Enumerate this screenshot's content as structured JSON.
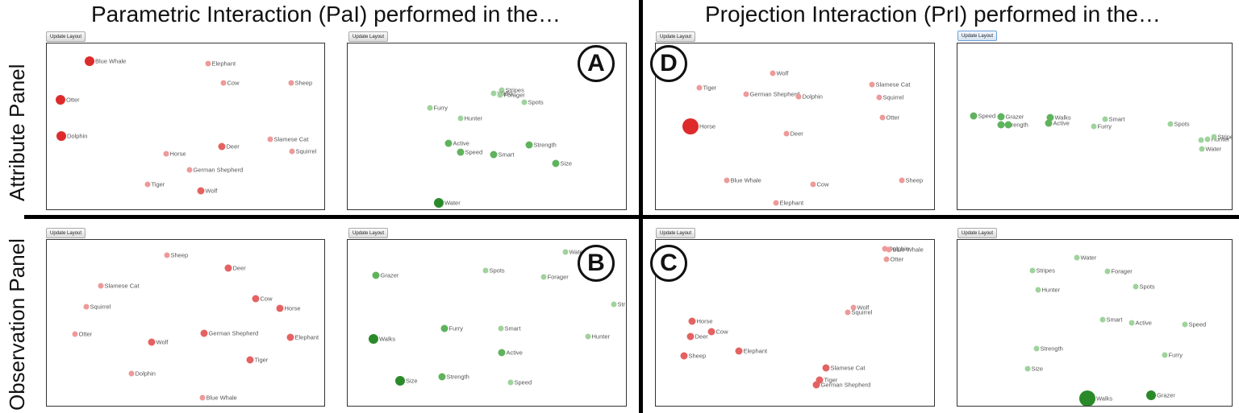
{
  "columns": {
    "left": "Parametric Interaction (PaI) performed in the…",
    "right": "Projection Interaction (PrI) performed in the…"
  },
  "rows": {
    "top": "Attribute Panel",
    "bottom": "Observation Panel"
  },
  "update_label": "Update Layout",
  "markers": {
    "A": "A",
    "B": "B",
    "C": "C",
    "D": "D"
  },
  "colors": {
    "obs_light": "#ee9a9a",
    "obs_mid": "#e56262",
    "obs_strong": "#dd2b2b",
    "attr_light": "#9fd39c",
    "attr_mid": "#5fb35c",
    "attr_strong": "#2a8a2a"
  },
  "panels": [
    {
      "id": "A-obs",
      "points": [
        {
          "label": "Blue Whale",
          "lvl": 3
        },
        {
          "label": "Elephant",
          "lvl": 1
        },
        {
          "label": "Cow",
          "lvl": 1
        },
        {
          "label": "Sheep",
          "lvl": 1
        },
        {
          "label": "Otter",
          "lvl": 3
        },
        {
          "label": "Dolphin",
          "lvl": 3
        },
        {
          "label": "Deer",
          "lvl": 2
        },
        {
          "label": "Slamese Cat",
          "lvl": 1
        },
        {
          "label": "Horse",
          "lvl": 1
        },
        {
          "label": "Squirrel",
          "lvl": 1
        },
        {
          "label": "German Shepherd",
          "lvl": 1
        },
        {
          "label": "Tiger",
          "lvl": 1
        },
        {
          "label": "Wolf",
          "lvl": 2
        }
      ]
    },
    {
      "id": "A-attr",
      "points": [
        {
          "label": "Stripes",
          "lvl": 1
        },
        {
          "label": "Walks",
          "lvl": 1
        },
        {
          "label": "Forager",
          "lvl": 1
        },
        {
          "label": "Spots",
          "lvl": 1
        },
        {
          "label": "Furry",
          "lvl": 1
        },
        {
          "label": "Hunter",
          "lvl": 1
        },
        {
          "label": "Active",
          "lvl": 2
        },
        {
          "label": "Strength",
          "lvl": 2
        },
        {
          "label": "Speed",
          "lvl": 2
        },
        {
          "label": "Smart",
          "lvl": 2
        },
        {
          "label": "Size",
          "lvl": 2
        },
        {
          "label": "Water",
          "lvl": 3
        }
      ]
    },
    {
      "id": "D-obs",
      "points": [
        {
          "label": "Wolf",
          "lvl": 1
        },
        {
          "label": "Tiger",
          "lvl": 1
        },
        {
          "label": "Slamese Cat",
          "lvl": 1
        },
        {
          "label": "German Shepherd",
          "lvl": 1
        },
        {
          "label": "Dolphin",
          "lvl": 1
        },
        {
          "label": "Squirrel",
          "lvl": 1
        },
        {
          "label": "Otter",
          "lvl": 1
        },
        {
          "label": "Horse",
          "lvl": 4
        },
        {
          "label": "Deer",
          "lvl": 1
        },
        {
          "label": "Blue Whale",
          "lvl": 1
        },
        {
          "label": "Cow",
          "lvl": 1
        },
        {
          "label": "Sheep",
          "lvl": 1
        },
        {
          "label": "Elephant",
          "lvl": 1
        }
      ]
    },
    {
      "id": "D-attr",
      "points": [
        {
          "label": "Speed",
          "lvl": 2
        },
        {
          "label": "Grazer",
          "lvl": 2
        },
        {
          "label": "Strength",
          "lvl": 2
        },
        {
          "label": "",
          "lvl": 2
        },
        {
          "label": "Walks",
          "lvl": 2
        },
        {
          "label": "Active",
          "lvl": 2
        },
        {
          "label": "Smart",
          "lvl": 1
        },
        {
          "label": "Furry",
          "lvl": 1
        },
        {
          "label": "Spots",
          "lvl": 1
        },
        {
          "label": "Hunter",
          "lvl": 1
        },
        {
          "label": "Stripes",
          "lvl": 1
        },
        {
          "label": "",
          "lvl": 1
        },
        {
          "label": "Water",
          "lvl": 1
        }
      ]
    },
    {
      "id": "B-obs",
      "points": [
        {
          "label": "Sheep",
          "lvl": 1
        },
        {
          "label": "Deer",
          "lvl": 2
        },
        {
          "label": "Slamese Cat",
          "lvl": 1
        },
        {
          "label": "Cow",
          "lvl": 2
        },
        {
          "label": "Squirrel",
          "lvl": 1
        },
        {
          "label": "Horse",
          "lvl": 2
        },
        {
          "label": "Otter",
          "lvl": 1
        },
        {
          "label": "Wolf",
          "lvl": 2
        },
        {
          "label": "German Shepherd",
          "lvl": 2
        },
        {
          "label": "Elephant",
          "lvl": 2
        },
        {
          "label": "Tiger",
          "lvl": 2
        },
        {
          "label": "Dolphin",
          "lvl": 1
        },
        {
          "label": "Blue Whale",
          "lvl": 1
        }
      ]
    },
    {
      "id": "B-attr",
      "points": [
        {
          "label": "Water",
          "lvl": 1
        },
        {
          "label": "Grazer",
          "lvl": 2
        },
        {
          "label": "Spots",
          "lvl": 1
        },
        {
          "label": "Forager",
          "lvl": 1
        },
        {
          "label": "Str",
          "lvl": 1
        },
        {
          "label": "Furry",
          "lvl": 2
        },
        {
          "label": "Smart",
          "lvl": 1
        },
        {
          "label": "Walks",
          "lvl": 3
        },
        {
          "label": "Hunter",
          "lvl": 1
        },
        {
          "label": "Active",
          "lvl": 2
        },
        {
          "label": "Size",
          "lvl": 3
        },
        {
          "label": "Strength",
          "lvl": 2
        },
        {
          "label": "Speed",
          "lvl": 1
        }
      ]
    },
    {
      "id": "C-obs",
      "points": [
        {
          "label": "Dolphin",
          "lvl": 1
        },
        {
          "label": "Blue Whale",
          "lvl": 1
        },
        {
          "label": "Otter",
          "lvl": 1
        },
        {
          "label": "Wolf",
          "lvl": 1
        },
        {
          "label": "Squirrel",
          "lvl": 1
        },
        {
          "label": "Horse",
          "lvl": 2
        },
        {
          "label": "Cow",
          "lvl": 2
        },
        {
          "label": "Deer",
          "lvl": 2
        },
        {
          "label": "Elephant",
          "lvl": 2
        },
        {
          "label": "Sheep",
          "lvl": 2
        },
        {
          "label": "Slamese Cat",
          "lvl": 2
        },
        {
          "label": "Tiger",
          "lvl": 2
        },
        {
          "label": "German Shepherd",
          "lvl": 2
        }
      ]
    },
    {
      "id": "C-attr",
      "points": [
        {
          "label": "Water",
          "lvl": 1
        },
        {
          "label": "Stripes",
          "lvl": 1
        },
        {
          "label": "Forager",
          "lvl": 1
        },
        {
          "label": "Hunter",
          "lvl": 1
        },
        {
          "label": "Spots",
          "lvl": 1
        },
        {
          "label": "Smart",
          "lvl": 1
        },
        {
          "label": "Active",
          "lvl": 1
        },
        {
          "label": "Speed",
          "lvl": 1
        },
        {
          "label": "Strength",
          "lvl": 1
        },
        {
          "label": "Furry",
          "lvl": 1
        },
        {
          "label": "Size",
          "lvl": 1
        },
        {
          "label": "Walks",
          "lvl": 4
        },
        {
          "label": "Grazer",
          "lvl": 3
        }
      ]
    }
  ]
}
